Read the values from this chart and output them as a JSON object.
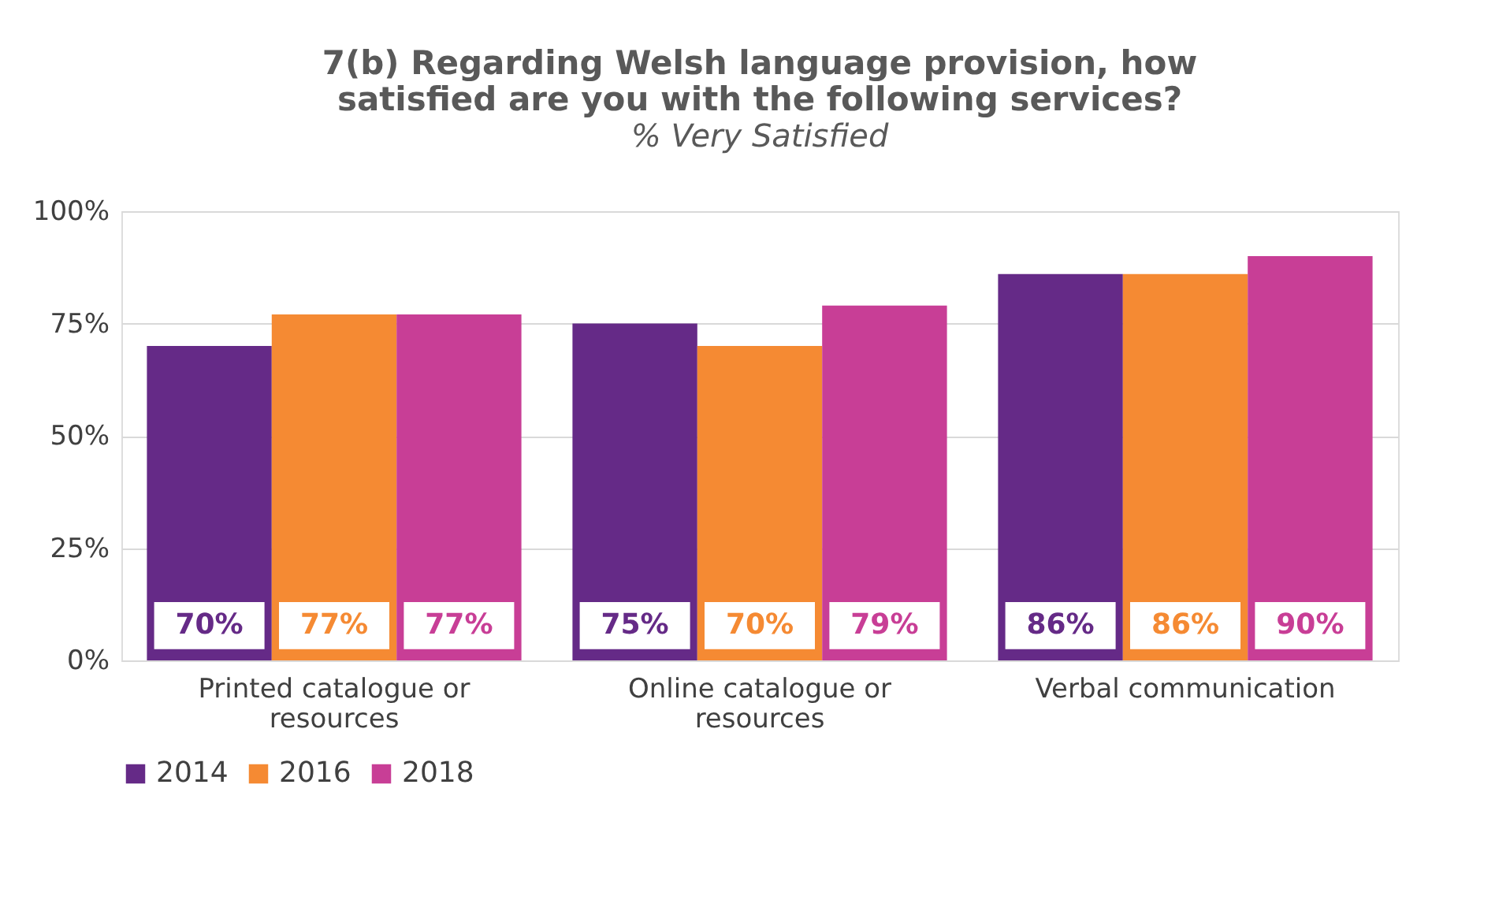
{
  "chart_data": {
    "type": "bar",
    "title": [
      "7(b) Regarding Welsh language provision, how",
      "satisfied are you with the following services?"
    ],
    "subtitle": "% Very Satisfied",
    "categories": [
      "Printed catalogue or resources",
      "Online catalogue or resources",
      "Verbal communication"
    ],
    "series": [
      {
        "name": "2014",
        "color": "#652a87",
        "values": [
          70,
          75,
          86
        ],
        "value_labels": [
          "70%",
          "75%",
          "86%"
        ]
      },
      {
        "name": "2016",
        "color": "#f58a33",
        "values": [
          77,
          70,
          86
        ],
        "value_labels": [
          "77%",
          "70%",
          "86%"
        ]
      },
      {
        "name": "2018",
        "color": "#c83e96",
        "values": [
          77,
          79,
          90
        ],
        "value_labels": [
          "77%",
          "79%",
          "90%"
        ]
      }
    ],
    "ylim": [
      0,
      100
    ],
    "yticks": [
      {
        "value": 0,
        "label": "0%"
      },
      {
        "value": 25,
        "label": "25%"
      },
      {
        "value": 50,
        "label": "50%"
      },
      {
        "value": 75,
        "label": "75%"
      },
      {
        "value": 100,
        "label": "100%"
      }
    ],
    "grid": "y",
    "legend": "bottom"
  }
}
